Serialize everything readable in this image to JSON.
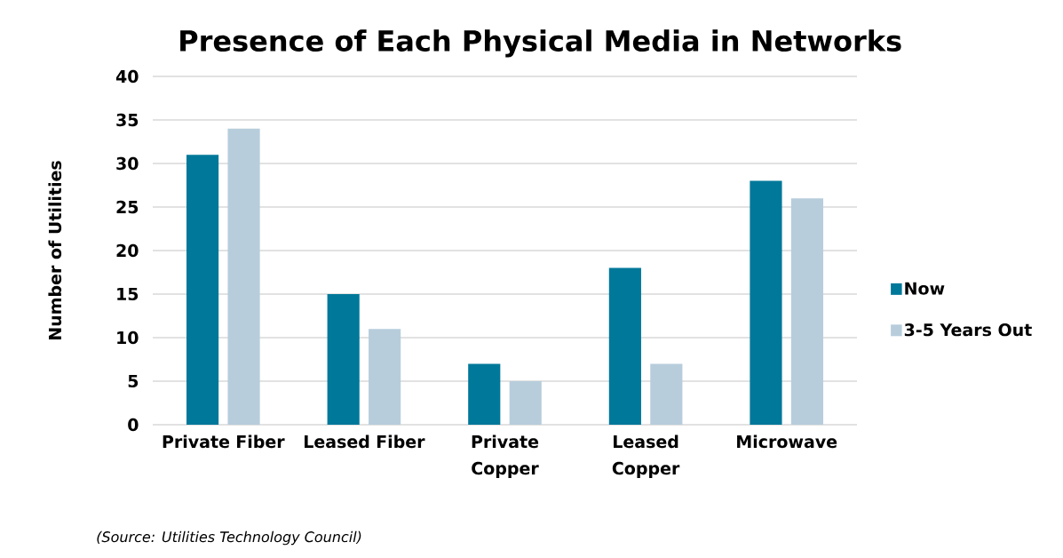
{
  "chart_data": {
    "type": "bar",
    "title": "Presence of Each Physical Media in Networks",
    "ylabel": "Number of Utilities",
    "categories": [
      "Private Fiber",
      "Leased Fiber",
      "Private Copper",
      "Leased Copper",
      "Microwave"
    ],
    "series": [
      {
        "name": "Now",
        "color": "#00789a",
        "values": [
          31,
          15,
          7,
          18,
          28
        ]
      },
      {
        "name": "3-5 Years Out",
        "color": "#b7cddc",
        "values": [
          34,
          11,
          5,
          7,
          26
        ]
      }
    ],
    "ylim": [
      0,
      40
    ],
    "yticks": [
      0,
      5,
      10,
      15,
      20,
      25,
      30,
      35,
      40
    ],
    "grid": "y",
    "legend": "right",
    "annotations": [
      "(Source: Utilities Technology Council)"
    ]
  }
}
